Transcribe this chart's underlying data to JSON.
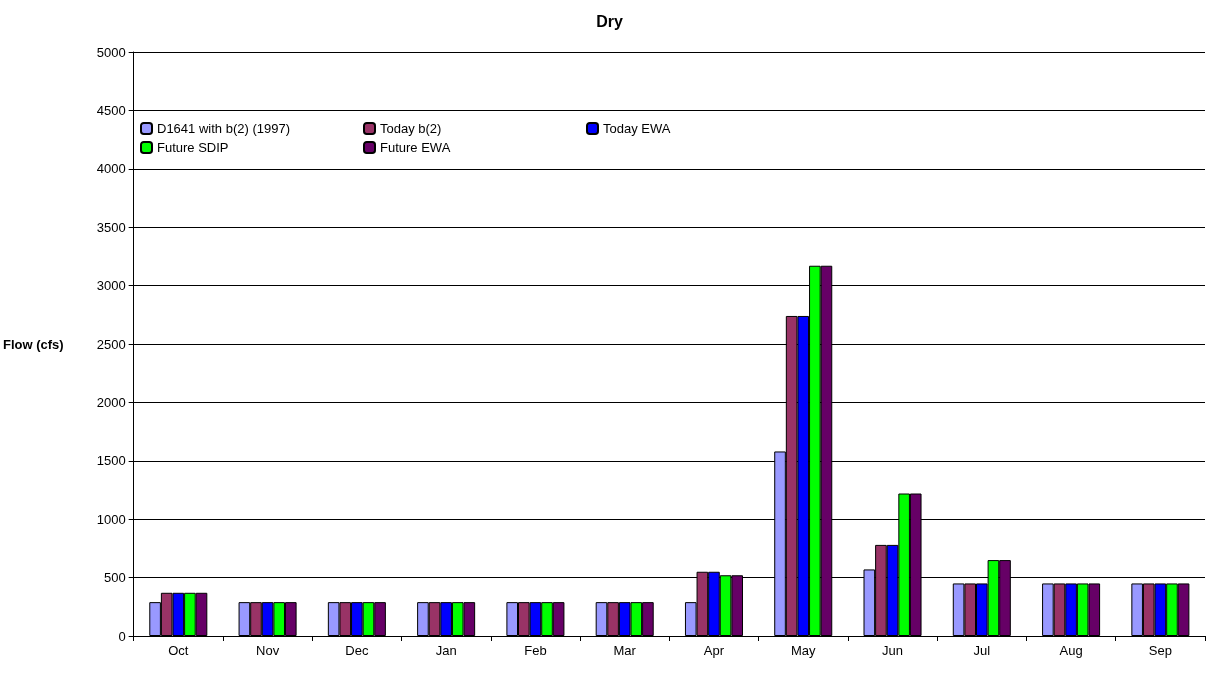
{
  "chart_data": {
    "type": "bar",
    "title": "Dry",
    "ylabel": "Flow (cfs)",
    "categories": [
      "Oct",
      "Nov",
      "Dec",
      "Jan",
      "Feb",
      "Mar",
      "Apr",
      "May",
      "Jun",
      "Jul",
      "Aug",
      "Sep"
    ],
    "series": [
      {
        "name": "D1641 with b(2) (1997)",
        "color": "#9999ff",
        "values": [
          290,
          290,
          290,
          290,
          290,
          290,
          290,
          1580,
          570,
          450,
          450,
          450
        ]
      },
      {
        "name": "Today b(2)",
        "color": "#993366",
        "values": [
          370,
          290,
          290,
          290,
          290,
          290,
          550,
          2740,
          780,
          450,
          450,
          450
        ]
      },
      {
        "name": "Today EWA",
        "color": "#0000ff",
        "values": [
          370,
          290,
          290,
          290,
          290,
          290,
          550,
          2740,
          780,
          450,
          450,
          450
        ]
      },
      {
        "name": "Future SDIP",
        "color": "#00ff00",
        "values": [
          370,
          290,
          290,
          290,
          290,
          290,
          520,
          3170,
          1220,
          650,
          450,
          450
        ]
      },
      {
        "name": "Future EWA",
        "color": "#660066",
        "values": [
          370,
          290,
          290,
          290,
          290,
          290,
          520,
          3170,
          1220,
          650,
          450,
          450
        ]
      }
    ],
    "ylim": [
      0,
      5000
    ],
    "yticks": [
      0,
      500,
      1000,
      1500,
      2000,
      2500,
      3000,
      3500,
      4000,
      4500,
      5000
    ],
    "grid": "y",
    "legend": "top left"
  }
}
